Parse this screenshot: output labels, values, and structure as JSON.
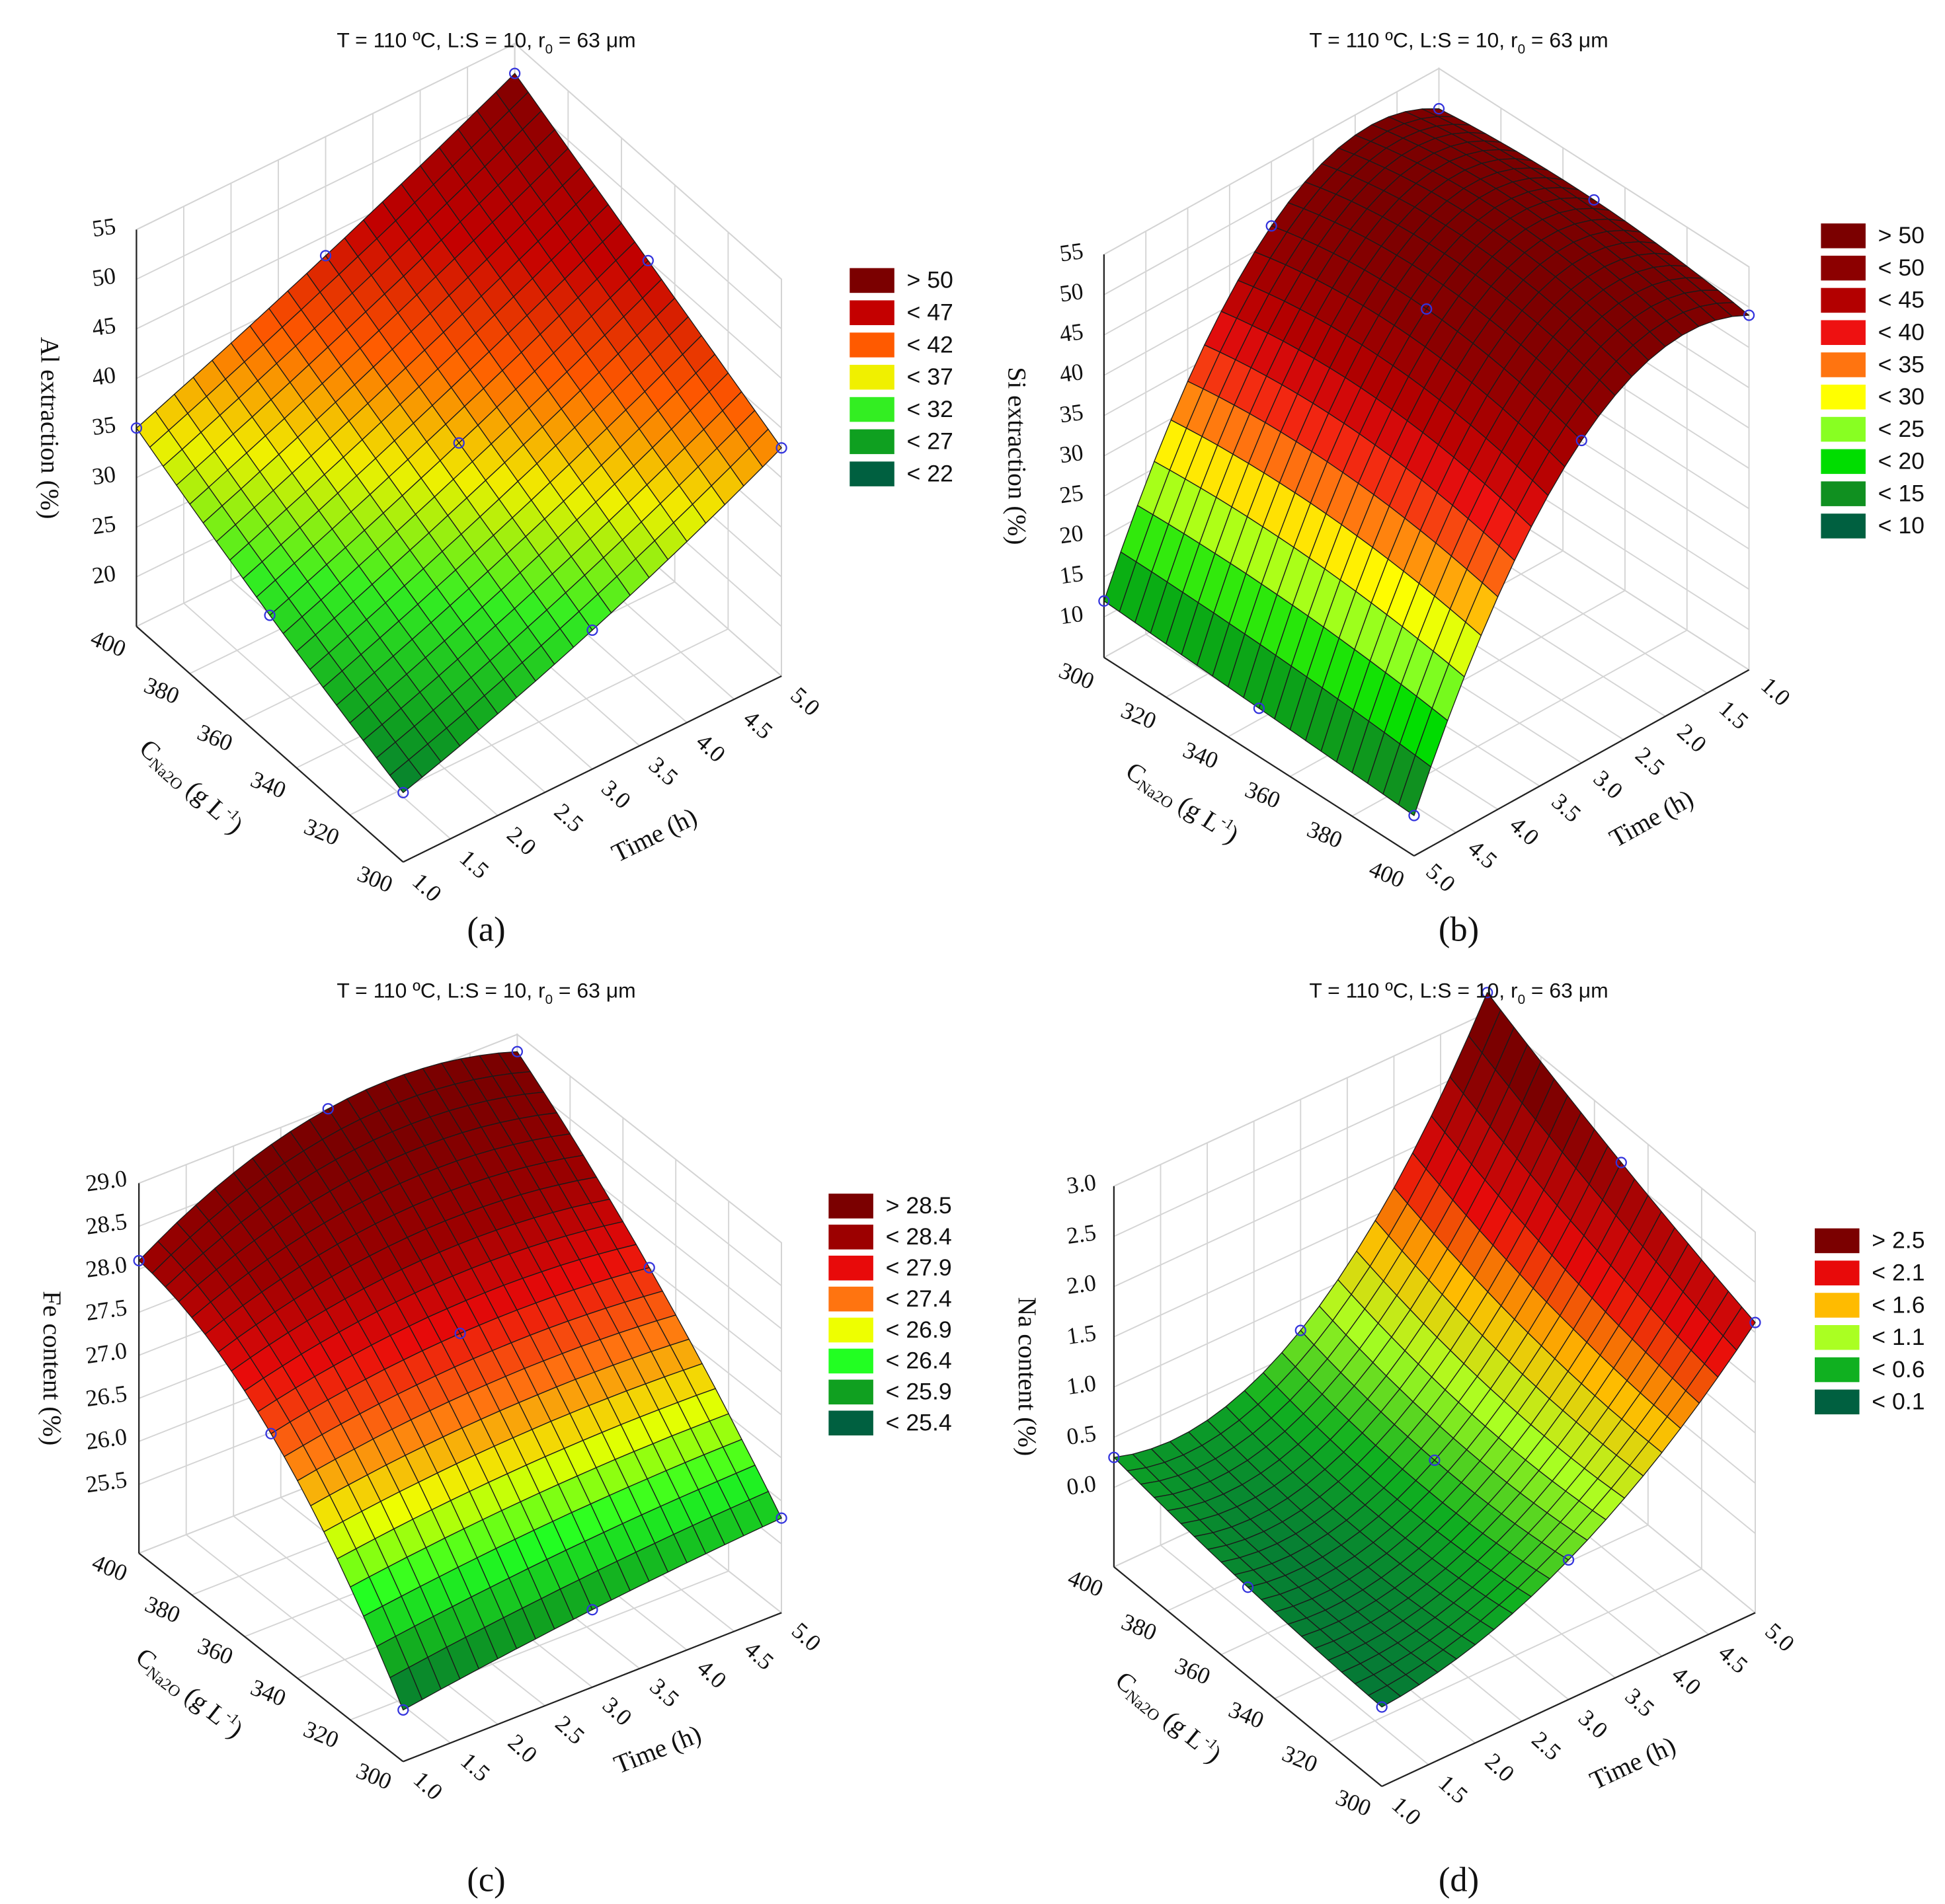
{
  "chart_data": [
    {
      "type": "surface",
      "panel_label": "(a)",
      "title": {
        "pre": "T = 110 ºC, L:S = 10, r",
        "sub": "0",
        "post": " = 63 μm"
      },
      "zlabel": "Al extraction (%)",
      "xlabel": {
        "symbol": "C",
        "sub": "Na2O",
        "unit": " (g L",
        "sup": "-1",
        "close": ")"
      },
      "ylabel": "Time (h)",
      "x_levels": [
        300,
        350,
        400
      ],
      "y_levels": [
        1,
        3,
        5
      ],
      "z_grid": [
        [
          22,
          29,
          38
        ],
        [
          28,
          36,
          45
        ],
        [
          35,
          43,
          52
        ]
      ],
      "zlim": [
        15,
        55
      ],
      "z_ticks": [
        "20",
        "25",
        "30",
        "35",
        "40",
        "45",
        "50",
        "55"
      ],
      "x_ticks": [
        "300",
        "320",
        "340",
        "360",
        "380",
        "400"
      ],
      "y_ticks": [
        "1.0",
        "1.5",
        "2.0",
        "2.5",
        "3.0",
        "3.5",
        "4.0",
        "4.5",
        "5.0"
      ],
      "legend": [
        {
          "label": "> 50",
          "value": 50,
          "color": "#7b0000"
        },
        {
          "label": "< 47",
          "value": 47,
          "color": "#c40000"
        },
        {
          "label": "< 42",
          "value": 42,
          "color": "#ff5a00"
        },
        {
          "label": "< 37",
          "value": 37,
          "color": "#f0f000"
        },
        {
          "label": "< 32",
          "value": 32,
          "color": "#33ee22"
        },
        {
          "label": "< 27",
          "value": 27,
          "color": "#0fa020"
        },
        {
          "label": "< 22",
          "value": 22,
          "color": "#006040"
        }
      ]
    },
    {
      "type": "surface",
      "panel_label": "(b)",
      "title": {
        "pre": "T = 110 ºC, L:S = 10, r",
        "sub": "0",
        "post": " = 63 μm"
      },
      "zlabel": "Si extraction (%)",
      "xlabel": {
        "symbol": "C",
        "sub": "Na2O",
        "unit": " (g L",
        "sup": "-1",
        "close": ")"
      },
      "ylabel": "Time (h)",
      "x_levels": [
        300,
        350,
        400
      ],
      "y_levels": [
        1,
        3,
        5
      ],
      "z_grid": [
        [
          50,
          47,
          12
        ],
        [
          51,
          49,
          11
        ],
        [
          49,
          45,
          10
        ]
      ],
      "zlim": [
        5,
        55
      ],
      "z_ticks": [
        "10",
        "15",
        "20",
        "25",
        "30",
        "35",
        "40",
        "45",
        "50",
        "55"
      ],
      "x_ticks": [
        "300",
        "320",
        "340",
        "360",
        "380",
        "400"
      ],
      "y_ticks": [
        "1.0",
        "1.5",
        "2.0",
        "2.5",
        "3.0",
        "3.5",
        "4.0",
        "4.5",
        "5.0"
      ],
      "legend": [
        {
          "label": "> 50",
          "value": 50,
          "color": "#7b0000"
        },
        {
          "label": "< 50",
          "value": 50,
          "color": "#8c0000"
        },
        {
          "label": "< 45",
          "value": 45,
          "color": "#b30000"
        },
        {
          "label": "< 40",
          "value": 40,
          "color": "#ee1111"
        },
        {
          "label": "< 35",
          "value": 35,
          "color": "#ff7410"
        },
        {
          "label": "< 30",
          "value": 30,
          "color": "#ffff00"
        },
        {
          "label": "< 25",
          "value": 25,
          "color": "#88ff22"
        },
        {
          "label": "< 20",
          "value": 20,
          "color": "#00dd00"
        },
        {
          "label": "< 15",
          "value": 15,
          "color": "#109020"
        },
        {
          "label": "< 10",
          "value": 10,
          "color": "#006040"
        }
      ]
    },
    {
      "type": "surface",
      "panel_label": "(c)",
      "title": {
        "pre": "T = 110 ºC, L:S = 10, r",
        "sub": "0",
        "post": " = 63 μm"
      },
      "zlabel": "Fe content (%)",
      "xlabel": {
        "symbol": "C",
        "sub": "Na2O",
        "unit": " (g L",
        "sup": "-1",
        "close": ")"
      },
      "ylabel": "Time (h)",
      "x_levels": [
        300,
        350,
        400
      ],
      "y_levels": [
        1,
        3,
        5
      ],
      "z_grid": [
        [
          25.3,
          25.6,
          25.8
        ],
        [
          27.3,
          27.6,
          27.5
        ],
        [
          28.1,
          29.0,
          28.8
        ]
      ],
      "zlim": [
        25.0,
        29.0
      ],
      "z_ticks": [
        "25.5",
        "26.0",
        "26.5",
        "27.0",
        "27.5",
        "28.0",
        "28.5",
        "29.0"
      ],
      "x_ticks": [
        "300",
        "320",
        "340",
        "360",
        "380",
        "400"
      ],
      "y_ticks": [
        "1.0",
        "1.5",
        "2.0",
        "2.5",
        "3.0",
        "3.5",
        "4.0",
        "4.5",
        "5.0"
      ],
      "legend": [
        {
          "label": "> 28.5",
          "value": 28.5,
          "color": "#7b0000"
        },
        {
          "label": "< 28.4",
          "value": 28.4,
          "color": "#9c0000"
        },
        {
          "label": "< 27.9",
          "value": 27.9,
          "color": "#e80a0a"
        },
        {
          "label": "< 27.4",
          "value": 27.4,
          "color": "#ff7410"
        },
        {
          "label": "< 26.9",
          "value": 26.9,
          "color": "#eeff00"
        },
        {
          "label": "< 26.4",
          "value": 26.4,
          "color": "#22ff22"
        },
        {
          "label": "< 25.9",
          "value": 25.9,
          "color": "#10a020"
        },
        {
          "label": "< 25.4",
          "value": 25.4,
          "color": "#006040"
        }
      ]
    },
    {
      "type": "surface",
      "panel_label": "(d)",
      "title": {
        "pre": "T = 110 ºC, L:S = 10, r",
        "sub": "0",
        "post": " = 63 μm"
      },
      "zlabel": "Na content (%)",
      "xlabel": {
        "symbol": "C",
        "sub": "Na2O",
        "unit": " (g L",
        "sup": "-1",
        "close": ")"
      },
      "ylabel": "Time (h)",
      "x_levels": [
        300,
        350,
        400
      ],
      "y_levels": [
        1,
        3,
        5
      ],
      "z_grid": [
        [
          0.0,
          0.6,
          2.1
        ],
        [
          0.1,
          0.5,
          2.6
        ],
        [
          0.3,
          0.7,
          3.2
        ]
      ],
      "zlim": [
        -0.5,
        3.0
      ],
      "z_ticks": [
        "0.0",
        "0.5",
        "1.0",
        "1.5",
        "2.0",
        "2.5",
        "3.0"
      ],
      "x_ticks": [
        "300",
        "320",
        "340",
        "360",
        "380",
        "400"
      ],
      "y_ticks": [
        "1.0",
        "1.5",
        "2.0",
        "2.5",
        "3.0",
        "3.5",
        "4.0",
        "4.5",
        "5.0"
      ],
      "legend": [
        {
          "label": "> 2.5",
          "value": 2.5,
          "color": "#7b0000"
        },
        {
          "label": "< 2.1",
          "value": 2.1,
          "color": "#e80a0a"
        },
        {
          "label": "< 1.6",
          "value": 1.6,
          "color": "#ffbb00"
        },
        {
          "label": "< 1.1",
          "value": 1.1,
          "color": "#aaff22"
        },
        {
          "label": "< 0.6",
          "value": 0.6,
          "color": "#10b020"
        },
        {
          "label": "< 0.1",
          "value": 0.1,
          "color": "#006040"
        }
      ]
    }
  ]
}
